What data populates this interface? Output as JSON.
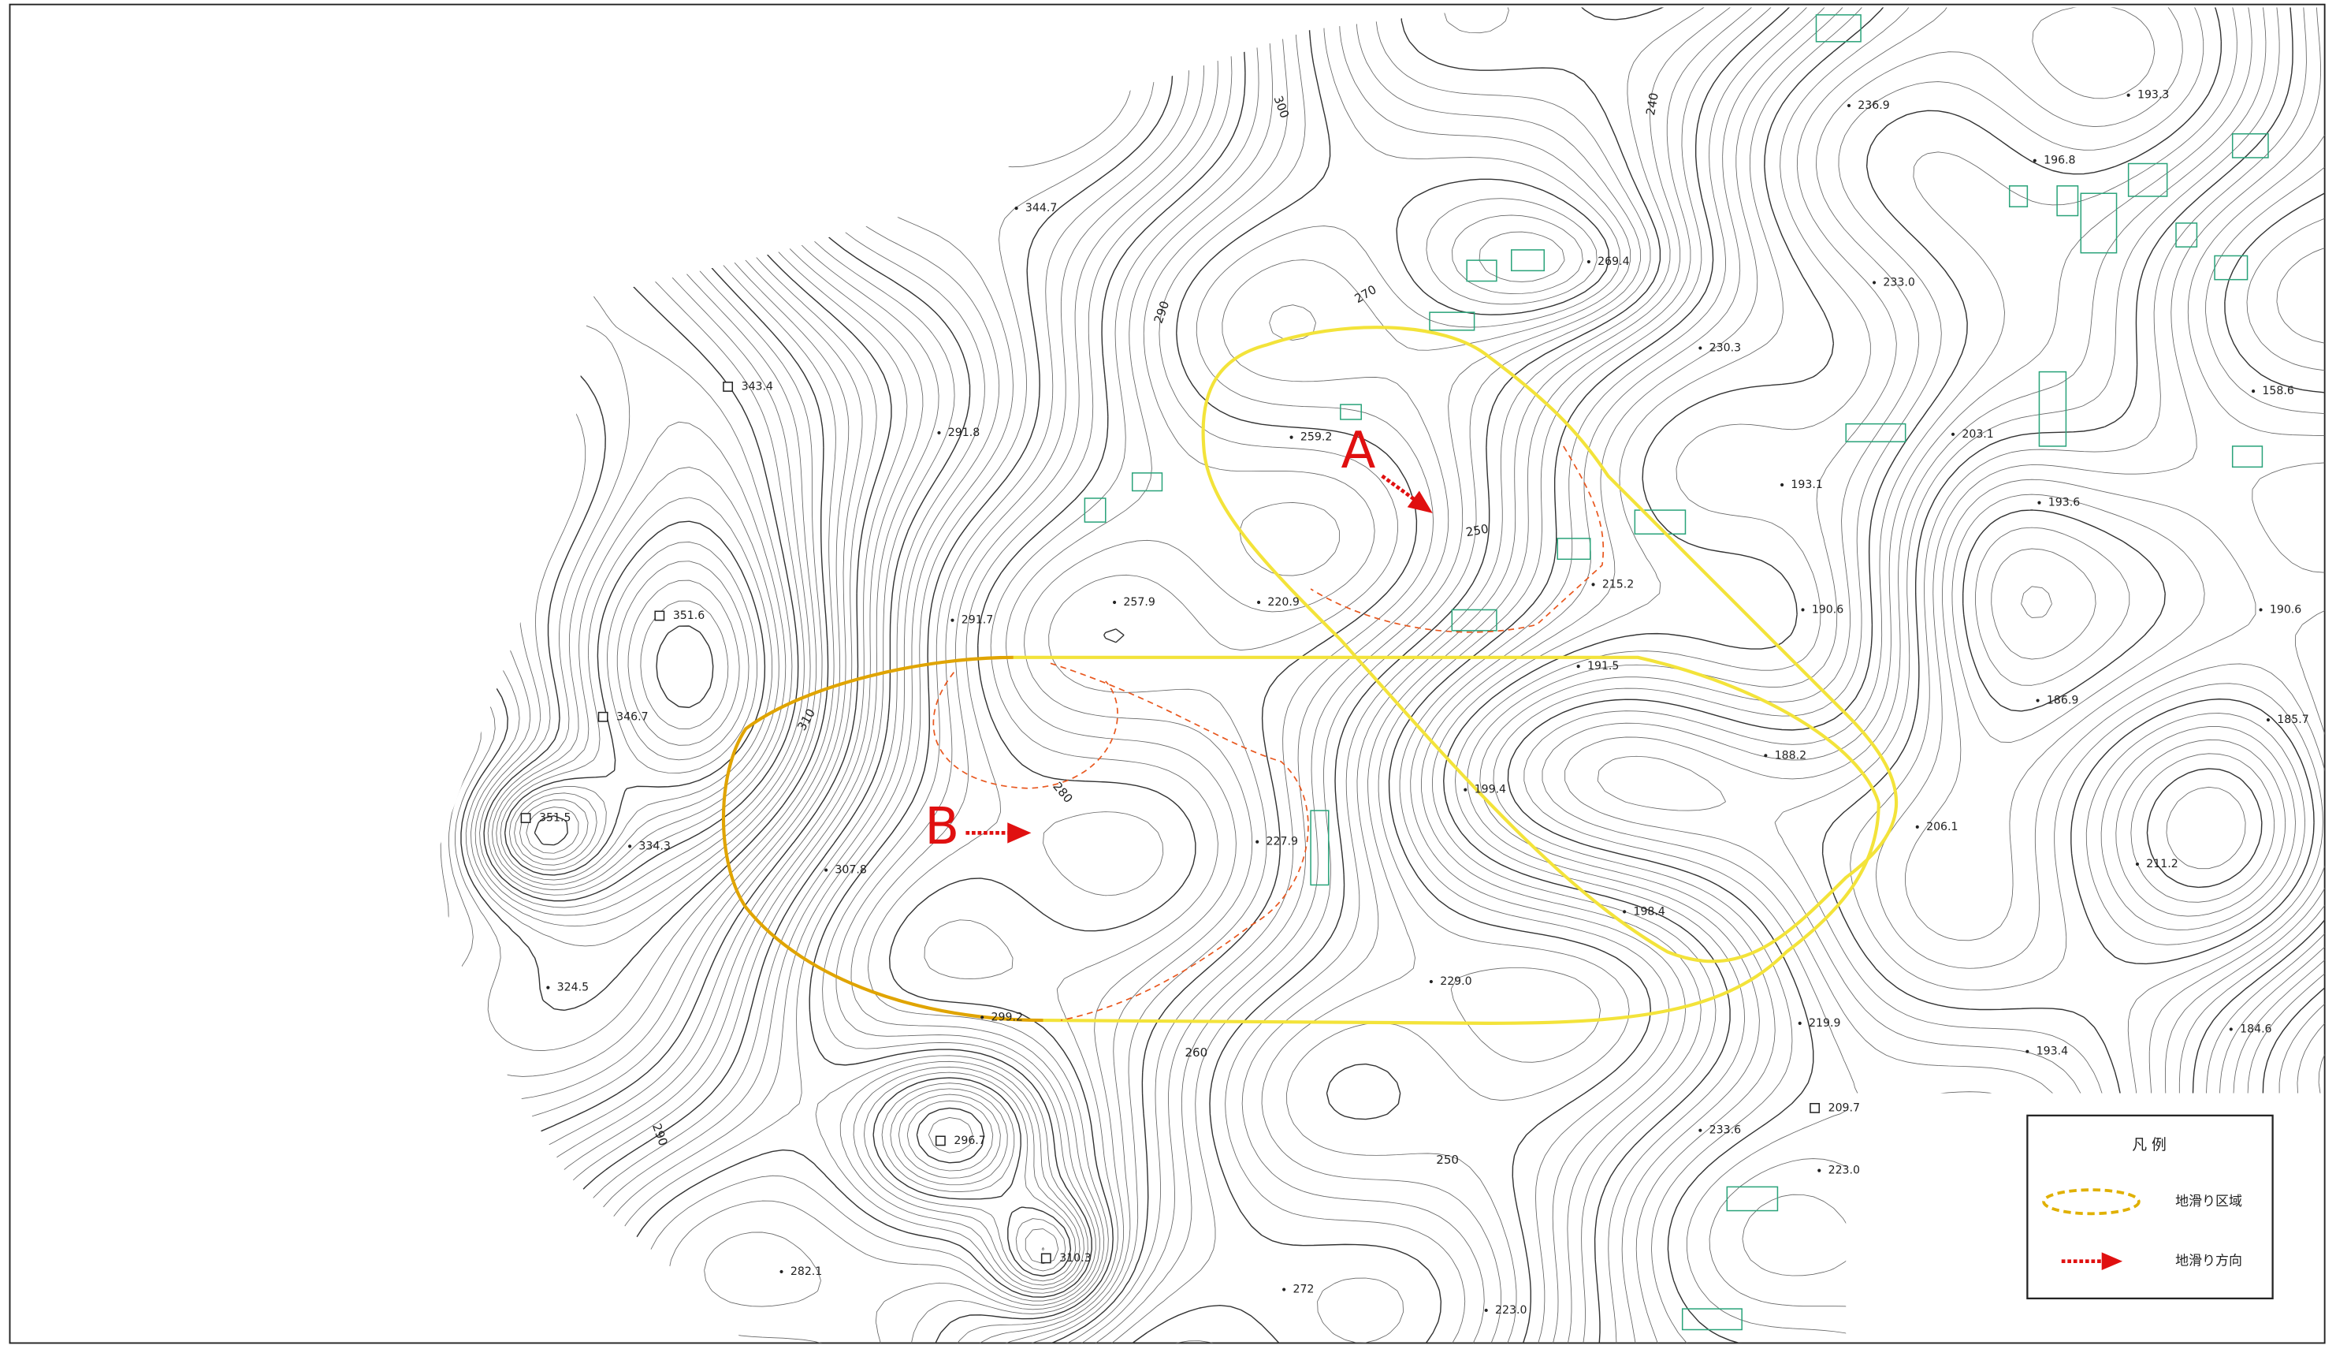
{
  "map": {
    "labels": {
      "a": "A",
      "b": "B"
    },
    "spot_heights": [
      "344.7",
      "343.4",
      "291.8",
      "351.6",
      "291.7",
      "346.7",
      "351.5",
      "334.3",
      "307.8",
      "324.5",
      "299.2",
      "296.7",
      "282.1",
      "310.3",
      "272",
      "229.0",
      "227.9",
      "220.9",
      "257.9",
      "259.2",
      "269.4",
      "230.3",
      "233.0",
      "236.9",
      "215.2",
      "191.5",
      "188.2",
      "199.4",
      "198.4",
      "206.1",
      "219.9",
      "193.4",
      "184.6",
      "211.2",
      "185.7",
      "186.9",
      "190.6",
      "190.6",
      "193.6",
      "193.1",
      "203.1",
      "158.6",
      "196.8",
      "193.3",
      "233.6",
      "209.7",
      "223.0",
      "223.0"
    ],
    "contour_labels": [
      "300",
      "290",
      "270",
      "240",
      "310",
      "280",
      "290",
      "260",
      "250",
      "250"
    ],
    "legend": {
      "title": "凡 例",
      "items": [
        "地滑り区域",
        "地滑り方向"
      ]
    }
  }
}
